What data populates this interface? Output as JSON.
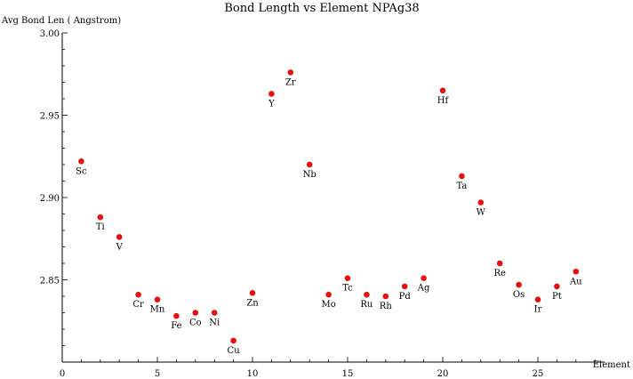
{
  "chart_data": {
    "type": "scatter",
    "title": "Bond Length vs Element NPAg38",
    "ylabel": "Avg Bond Len ( Angstrom)",
    "xlabel": "Element",
    "xlim": [
      0,
      28.5
    ],
    "ylim": [
      2.8,
      3.0
    ],
    "xticks": [
      "0",
      "5",
      "10",
      "15",
      "20",
      "25"
    ],
    "yticks": [
      "2.85",
      "2.90",
      "2.95",
      "3.00"
    ],
    "marker_color": "#e8100f",
    "points": [
      {
        "x": 1,
        "y": 2.922,
        "label": "Sc"
      },
      {
        "x": 2,
        "y": 2.888,
        "label": "Ti"
      },
      {
        "x": 3,
        "y": 2.876,
        "label": "V"
      },
      {
        "x": 4,
        "y": 2.841,
        "label": "Cr"
      },
      {
        "x": 5,
        "y": 2.838,
        "label": "Mn"
      },
      {
        "x": 6,
        "y": 2.828,
        "label": "Fe"
      },
      {
        "x": 7,
        "y": 2.83,
        "label": "Co"
      },
      {
        "x": 8,
        "y": 2.83,
        "label": "Ni"
      },
      {
        "x": 9,
        "y": 2.813,
        "label": "Cu"
      },
      {
        "x": 10,
        "y": 2.842,
        "label": "Zn"
      },
      {
        "x": 11,
        "y": 2.963,
        "label": "Y"
      },
      {
        "x": 12,
        "y": 2.976,
        "label": "Zr"
      },
      {
        "x": 13,
        "y": 2.92,
        "label": "Nb"
      },
      {
        "x": 14,
        "y": 2.841,
        "label": "Mo"
      },
      {
        "x": 15,
        "y": 2.851,
        "label": "Tc"
      },
      {
        "x": 16,
        "y": 2.841,
        "label": "Ru"
      },
      {
        "x": 17,
        "y": 2.84,
        "label": "Rh"
      },
      {
        "x": 18,
        "y": 2.846,
        "label": "Pd"
      },
      {
        "x": 19,
        "y": 2.851,
        "label": "Ag"
      },
      {
        "x": 20,
        "y": 2.965,
        "label": "Hf"
      },
      {
        "x": 21,
        "y": 2.913,
        "label": "Ta"
      },
      {
        "x": 22,
        "y": 2.897,
        "label": "W"
      },
      {
        "x": 23,
        "y": 2.86,
        "label": "Re"
      },
      {
        "x": 24,
        "y": 2.847,
        "label": "Os"
      },
      {
        "x": 25,
        "y": 2.838,
        "label": "Ir"
      },
      {
        "x": 26,
        "y": 2.846,
        "label": "Pt"
      },
      {
        "x": 27,
        "y": 2.855,
        "label": "Au"
      }
    ]
  }
}
